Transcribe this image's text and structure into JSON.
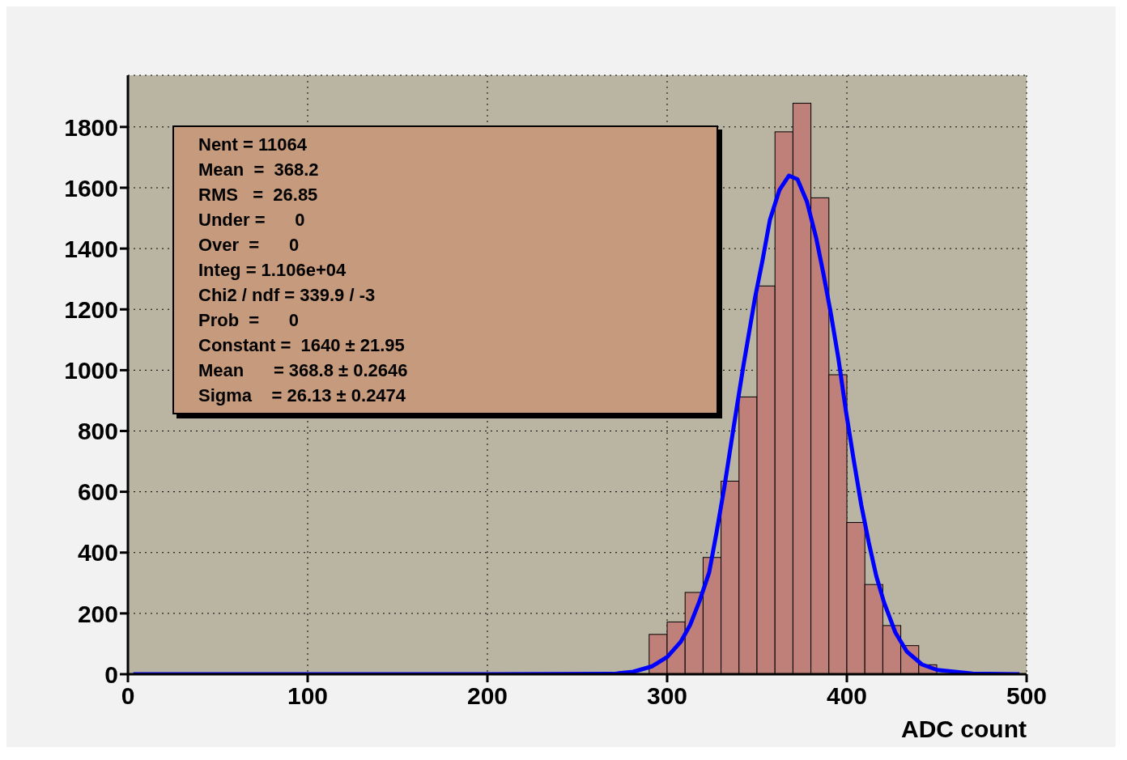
{
  "chart_data": {
    "type": "histogram",
    "xlabel": "ADC count",
    "bins": [
      0,
      10,
      20,
      30,
      40,
      50,
      60,
      70,
      80,
      90,
      100,
      110,
      120,
      130,
      140,
      150,
      160,
      170,
      180,
      190,
      200,
      210,
      220,
      230,
      240,
      250,
      260,
      270,
      280,
      290,
      300,
      310,
      320,
      330,
      340,
      350,
      360,
      370,
      380,
      390,
      400,
      410,
      420,
      430,
      440,
      450,
      460,
      470,
      480,
      490,
      500
    ],
    "values": [
      0,
      0,
      0,
      0,
      0,
      0,
      0,
      0,
      0,
      0,
      0,
      0,
      0,
      0,
      0,
      0,
      0,
      0,
      0,
      0,
      0,
      0,
      0,
      0,
      0,
      0,
      0,
      0,
      0,
      131,
      172,
      269,
      384,
      635,
      912,
      1277,
      1784,
      1878,
      1567,
      985,
      499,
      295,
      160,
      94,
      31,
      0,
      0,
      0,
      0,
      0
    ],
    "color": "#c0807a",
    "series": [
      {
        "type": "line",
        "color": "#0000ff",
        "x": [
          3,
          100,
          200,
          270,
          281.1,
          291.7,
          300.1,
          307.5,
          312.8,
          318.1,
          323.4,
          327.6,
          331.9,
          337.1,
          342.4,
          348.8,
          353.0,
          357.2,
          362.5,
          367.8,
          372.5,
          377.8,
          383.0,
          386.8,
          391.1,
          395.3,
          399.5,
          403.8,
          408.0,
          412.2,
          416.4,
          420.7,
          427.0,
          433.3,
          441.8,
          450.3,
          470,
          496
        ],
        "values": [
          0,
          0,
          0,
          1,
          8,
          26,
          57,
          106,
          162,
          242,
          335,
          470,
          618,
          816,
          1013,
          1235,
          1359,
          1495,
          1593,
          1640,
          1628,
          1554,
          1433,
          1322,
          1186,
          1038,
          865,
          705,
          557,
          433,
          322,
          236,
          137,
          75,
          32,
          14,
          2,
          0
        ]
      }
    ],
    "xlim": [
      0,
      500
    ],
    "xticks": [
      0,
      100,
      200,
      300,
      400,
      500
    ],
    "ylim": [
      0,
      1970
    ],
    "yticks": [
      0,
      200,
      400,
      600,
      800,
      1000,
      1200,
      1400,
      1600,
      1800
    ],
    "grid": true,
    "marker": "none",
    "line_style": "solid",
    "annotations": [
      "Nent = 11064",
      "Mean  =  368.2",
      "RMS   =  26.85",
      "Under =      0",
      "Over  =      0",
      "Integ = 1.106e+04",
      "Chi2 / ndf = 339.9 / -3",
      "Prob  =      0",
      "Constant =  1640 ± 21.95",
      "Mean      = 368.8 ± 0.2646",
      "Sigma    = 26.13 ± 0.2474"
    ]
  }
}
